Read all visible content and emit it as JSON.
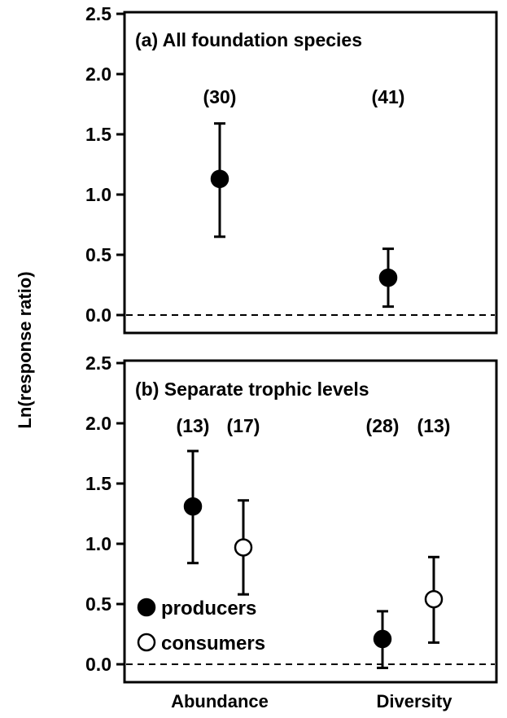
{
  "figure": {
    "ylabel": "Ln(response ratio)",
    "categories": [
      "Abundance",
      "Diversity"
    ]
  },
  "chart_data": [
    {
      "type": "scatter",
      "title": "(a) All foundation species",
      "xlabel": "",
      "ylabel": "Ln(response ratio)",
      "categories": [
        "Abundance",
        "Diversity"
      ],
      "ylim": [
        0,
        2.5
      ],
      "yticks": [
        "0.0",
        "0.5",
        "1.0",
        "1.5",
        "2.0",
        "2.5"
      ],
      "reference_line": 0,
      "series": [
        {
          "name": "",
          "marker": "filled",
          "points": [
            {
              "category": "Abundance",
              "value": 1.13,
              "lower": 0.65,
              "upper": 1.59,
              "n_label": "(30)"
            },
            {
              "category": "Diversity",
              "value": 0.31,
              "lower": 0.07,
              "upper": 0.55,
              "n_label": "(41)"
            }
          ]
        }
      ]
    },
    {
      "type": "scatter",
      "title": "(b) Separate trophic levels",
      "xlabel": "",
      "ylabel": "Ln(response ratio)",
      "categories": [
        "Abundance",
        "Diversity"
      ],
      "ylim": [
        0,
        2.5
      ],
      "yticks": [
        "0.0",
        "0.5",
        "1.0",
        "1.5",
        "2.0",
        "2.5"
      ],
      "reference_line": 0,
      "legend_position": "bottom-left",
      "series": [
        {
          "name": "producers",
          "marker": "filled",
          "points": [
            {
              "category": "Abundance",
              "value": 1.31,
              "lower": 0.84,
              "upper": 1.77,
              "n_label": "(13)"
            },
            {
              "category": "Diversity",
              "value": 0.21,
              "lower": -0.03,
              "upper": 0.44,
              "n_label": "(28)"
            }
          ]
        },
        {
          "name": "consumers",
          "marker": "open",
          "points": [
            {
              "category": "Abundance",
              "value": 0.97,
              "lower": 0.58,
              "upper": 1.36,
              "n_label": "(17)"
            },
            {
              "category": "Diversity",
              "value": 0.54,
              "lower": 0.18,
              "upper": 0.89,
              "n_label": "(13)"
            }
          ]
        }
      ]
    }
  ]
}
